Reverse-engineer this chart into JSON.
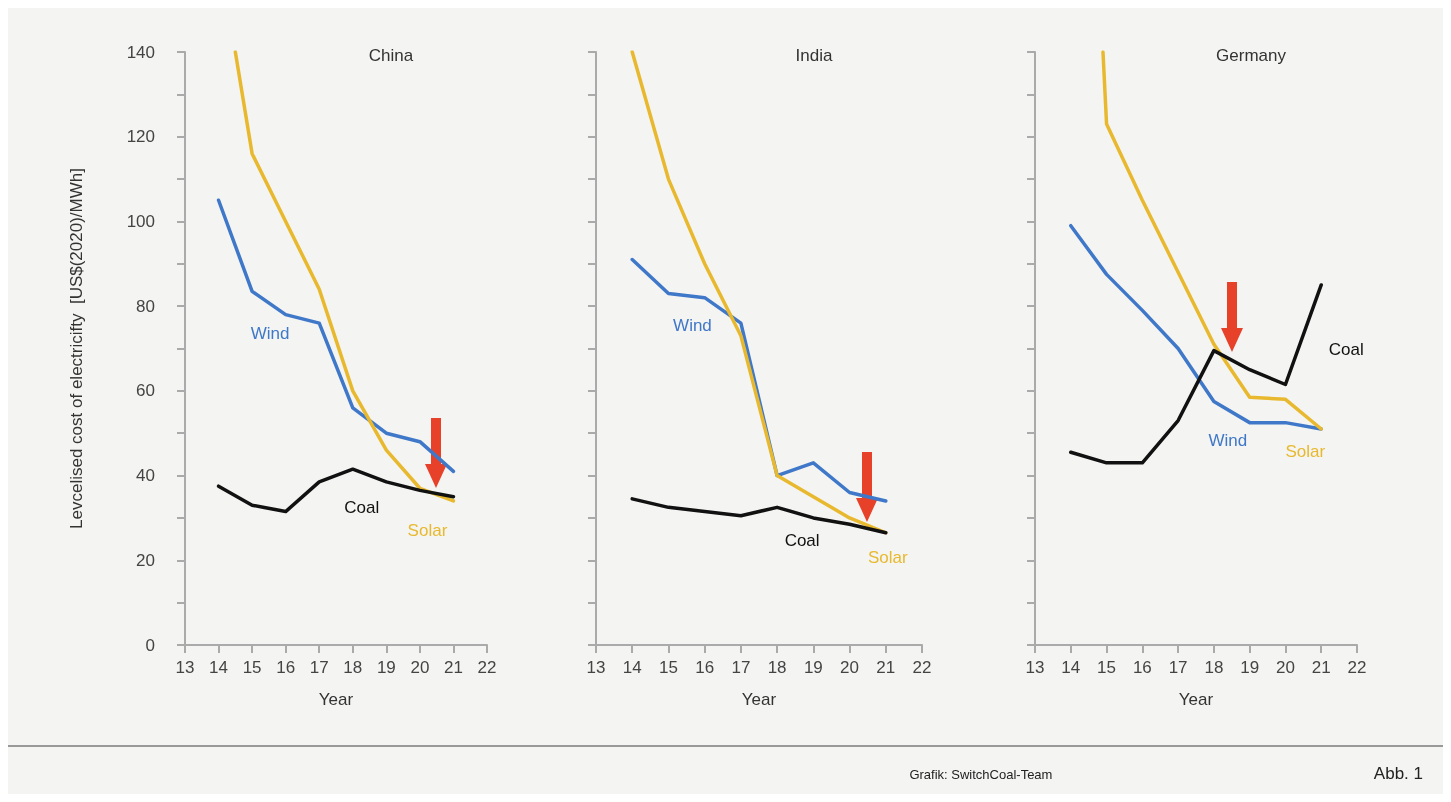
{
  "chart_data": [
    {
      "type": "line",
      "title": "China",
      "xlabel": "Year",
      "ylabel": "Levcelised cost of electricifty  [US$(2020)/MWh]",
      "xlim": [
        13,
        22
      ],
      "xticks": [
        13,
        14,
        15,
        16,
        17,
        18,
        19,
        20,
        21,
        22
      ],
      "ylim": [
        0,
        140
      ],
      "yticks": [
        0,
        {
          "value": 10,
          "label": null
        },
        20,
        {
          "value": 30,
          "label": null
        },
        40,
        {
          "value": 50,
          "label": null
        },
        60,
        {
          "value": 70,
          "label": null
        },
        80,
        {
          "value": 90,
          "label": null
        },
        100,
        {
          "value": 110,
          "label": null
        },
        120,
        {
          "value": 130,
          "label": null
        },
        140
      ],
      "grid": false,
      "marker": "none",
      "line_style": "solid",
      "series": [
        {
          "name": "Wind",
          "color": "#3f78c8",
          "x": [
            14,
            15,
            16,
            17,
            18,
            19,
            20,
            21
          ],
          "values": [
            105,
            83.5,
            78,
            76,
            56,
            50,
            48,
            41
          ]
        },
        {
          "name": "Solar",
          "color": "#e8b92e",
          "x": [
            14.5,
            15,
            16,
            17,
            18,
            19,
            20,
            21
          ],
          "values": [
            140,
            116,
            100,
            84,
            60,
            46,
            37,
            34
          ]
        },
        {
          "name": "Coal",
          "color": "#111111",
          "x": [
            14,
            15,
            16,
            17,
            18,
            19,
            20,
            21
          ],
          "values": [
            37.5,
            33,
            31.5,
            38.5,
            41.5,
            38.5,
            36.5,
            35
          ]
        }
      ]
    },
    {
      "type": "line",
      "title": "India",
      "xlabel": "Year",
      "xlim": [
        13,
        22
      ],
      "xticks": [
        13,
        14,
        15,
        16,
        17,
        18,
        19,
        20,
        21,
        22
      ],
      "ylim": [
        0,
        140
      ],
      "yticks": [
        0,
        {
          "value": 10,
          "label": null
        },
        20,
        {
          "value": 30,
          "label": null
        },
        40,
        {
          "value": 50,
          "label": null
        },
        60,
        {
          "value": 70,
          "label": null
        },
        80,
        {
          "value": 90,
          "label": null
        },
        100,
        {
          "value": 110,
          "label": null
        },
        120,
        {
          "value": 130,
          "label": null
        },
        140
      ],
      "tick_labels": "x",
      "grid": false,
      "marker": "none",
      "line_style": "solid",
      "series": [
        {
          "name": "Wind",
          "color": "#3f78c8",
          "x": [
            14,
            15,
            16,
            17,
            18,
            19,
            20,
            21
          ],
          "values": [
            91,
            83,
            82,
            76,
            40,
            43,
            36,
            34
          ]
        },
        {
          "name": "Solar",
          "color": "#e8b92e",
          "x": [
            14,
            15,
            16,
            17,
            18,
            19,
            20,
            21
          ],
          "values": [
            140,
            110,
            90,
            73,
            40,
            35,
            30,
            26.5
          ]
        },
        {
          "name": "Coal",
          "color": "#111111",
          "x": [
            14,
            15,
            16,
            17,
            18,
            19,
            20,
            21
          ],
          "values": [
            34.5,
            32.5,
            31.5,
            30.5,
            32.5,
            30,
            28.5,
            26.5
          ]
        }
      ]
    },
    {
      "type": "line",
      "title": "Germany",
      "xlabel": "Year",
      "xlim": [
        13,
        22
      ],
      "xticks": [
        13,
        14,
        15,
        16,
        17,
        18,
        19,
        20,
        21,
        22
      ],
      "ylim": [
        0,
        140
      ],
      "yticks": [
        0,
        {
          "value": 10,
          "label": null
        },
        20,
        {
          "value": 30,
          "label": null
        },
        40,
        {
          "value": 50,
          "label": null
        },
        60,
        {
          "value": 70,
          "label": null
        },
        80,
        {
          "value": 90,
          "label": null
        },
        100,
        {
          "value": 110,
          "label": null
        },
        120,
        {
          "value": 130,
          "label": null
        },
        140
      ],
      "tick_labels": "x",
      "grid": false,
      "marker": "none",
      "line_style": "solid",
      "annotations": [
        "Grafik: SwitchCoal-Team",
        "Abb. 1"
      ],
      "series": [
        {
          "name": "Wind",
          "color": "#3f78c8",
          "x": [
            14,
            15,
            16,
            17,
            18,
            19,
            20,
            21
          ],
          "values": [
            99,
            87.5,
            79,
            70,
            57.5,
            52.5,
            52.5,
            51
          ]
        },
        {
          "name": "Solar",
          "color": "#e8b92e",
          "x": [
            14.9,
            15,
            16,
            17,
            18,
            19,
            20,
            21
          ],
          "values": [
            140,
            123,
            105,
            88,
            71,
            58.5,
            58,
            51
          ]
        },
        {
          "name": "Coal",
          "color": "#111111",
          "x": [
            14,
            15,
            16,
            17,
            18,
            19,
            20,
            21
          ],
          "values": [
            45.5,
            43,
            43,
            53,
            69.5,
            65,
            61.5,
            85
          ]
        }
      ]
    }
  ]
}
